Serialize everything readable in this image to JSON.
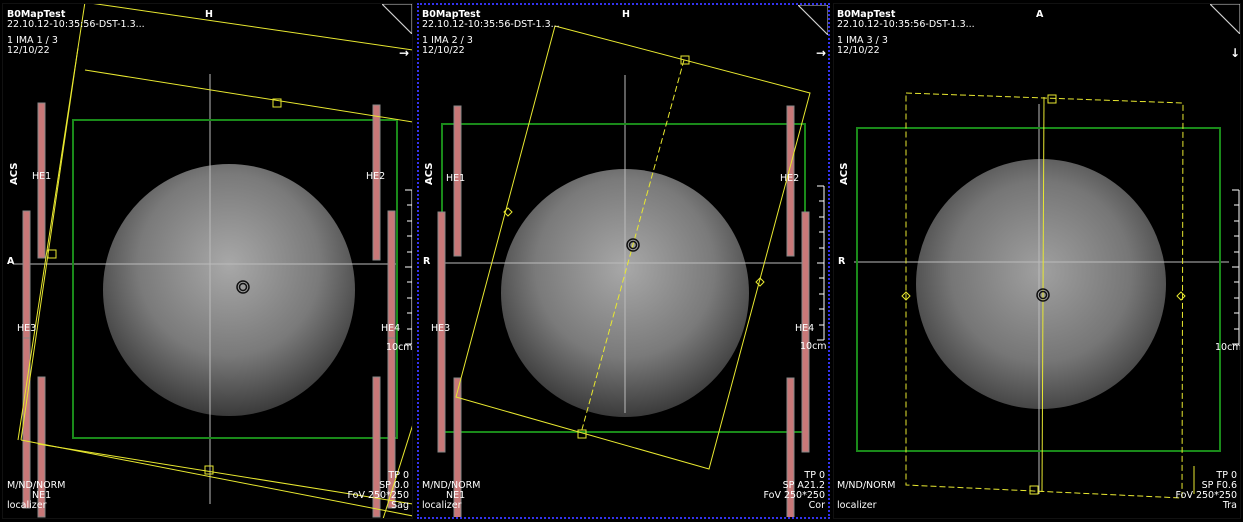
{
  "viewports": [
    {
      "patient": "B0MapTest",
      "study": "22.10.12-10:35:56-DST-1.3...",
      "image": "1 IMA 1 / 3",
      "date": "12/10/22",
      "orient_top": "H",
      "orient_left": "A",
      "orient_side": "ACS",
      "direction_arrow": "→",
      "coils": [
        "HE1",
        "HE2",
        "HE3",
        "HE4",
        "NE1"
      ],
      "scale": "10cm",
      "bottom_left": [
        "M/ND/NORM",
        "localizer"
      ],
      "bottom_right": [
        "TP 0",
        "SP  0.0",
        "FoV 250*250",
        "Sag"
      ]
    },
    {
      "patient": "B0MapTest",
      "study": "22.10.12-10:35:56-DST-1.3...",
      "image": "1 IMA 2 / 3",
      "date": "12/10/22",
      "orient_top": "H",
      "orient_left": "R",
      "orient_side": "ACS",
      "direction_arrow": "→",
      "coils": [
        "HE1",
        "HE2",
        "HE3",
        "HE4",
        "NE1"
      ],
      "scale": "10cm",
      "bottom_left": [
        "M/ND/NORM",
        "localizer"
      ],
      "bottom_right": [
        "TP 0",
        "SP A21.2",
        "FoV 250*250",
        "Cor"
      ]
    },
    {
      "patient": "B0MapTest",
      "study": "22.10.12-10:35:56-DST-1.3...",
      "image": "1 IMA 3 / 3",
      "date": "12/10/22",
      "orient_top": "A",
      "orient_left": "R",
      "orient_side": "ACS",
      "direction_arrow": "↓",
      "scale": "10cm",
      "bottom_left": [
        "M/ND/NORM",
        "localizer"
      ],
      "bottom_right": [
        "TP 0",
        "SP F0.6",
        "FoV 250*250",
        "Tra"
      ]
    }
  ],
  "colors": {
    "background": "#000000",
    "slab_outline": "#e8e830",
    "fov_box": "#1a8a1a",
    "coil_fill": "#c87878",
    "crosshair": "#c0c0c0",
    "active_border": "#3333ee",
    "text": "#ffffff"
  },
  "icons": [
    "corner-fold-icon",
    "direction-arrow-icon",
    "center-marker-icon"
  ]
}
